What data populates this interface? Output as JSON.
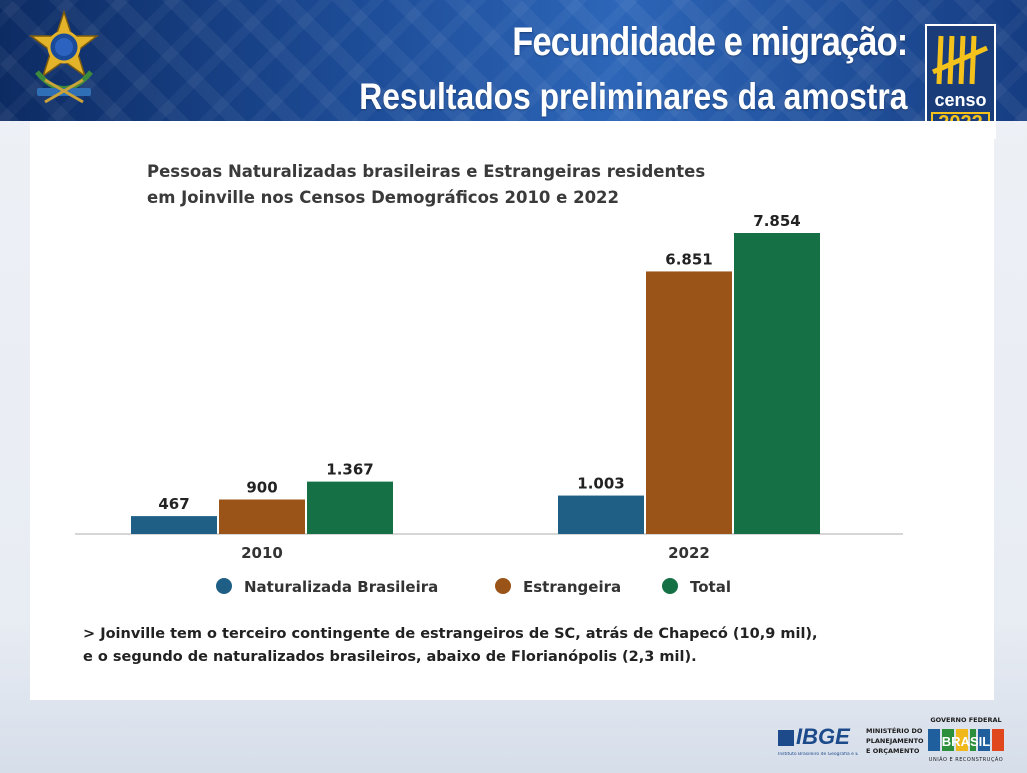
{
  "header": {
    "title": "Fecundidade e migração:",
    "subtitle": "Resultados preliminares da amostra",
    "censo_logo": {
      "word": "censo",
      "year": "2022"
    },
    "coat_of_arms_icon": "brazil-coat-of-arms-icon"
  },
  "chart_data": {
    "type": "bar",
    "title": "Pessoas Naturalizadas brasileiras e Estrangeiras residentes em Joinville nos Censos Demográficos 2010 e 2022",
    "title_lines": [
      "Pessoas Naturalizadas brasileiras e Estrangeiras residentes",
      "em Joinville nos Censos Demográficos 2010 e 2022"
    ],
    "categories": [
      "2010",
      "2022"
    ],
    "series": [
      {
        "name": "Naturalizada Brasileira",
        "color": "#1f5f86",
        "values": [
          467,
          1003
        ],
        "labels": [
          "467",
          "1.003"
        ]
      },
      {
        "name": "Estrangeira",
        "color": "#9a5418",
        "values": [
          900,
          6851
        ],
        "labels": [
          "900",
          "6.851"
        ]
      },
      {
        "name": "Total",
        "color": "#167046",
        "values": [
          1367,
          7854
        ],
        "labels": [
          "1.367",
          "7.854"
        ]
      }
    ],
    "xlabel": "",
    "ylabel": "",
    "ylim": [
      0,
      7854
    ],
    "grid": false,
    "legend_position": "bottom"
  },
  "note": {
    "line1": "> Joinville tem o terceiro contingente de estrangeiros de SC, atrás de Chapecó (10,9 mil),",
    "line2": "e o segundo de naturalizados brasileiros, abaixo de Florianópolis (2,3 mil)."
  },
  "footer": {
    "ibge": {
      "word": "IBGE",
      "tagline": "Instituto Brasileiro de Geografia e Estatística"
    },
    "ministerio": [
      "MINISTÉRIO DO",
      "PLANEJAMENTO",
      "E ORÇAMENTO"
    ],
    "governo": {
      "top": "GOVERNO FEDERAL",
      "word": "BRASIL",
      "bottom": "UNIÃO E RECONSTRUÇÃO"
    }
  }
}
